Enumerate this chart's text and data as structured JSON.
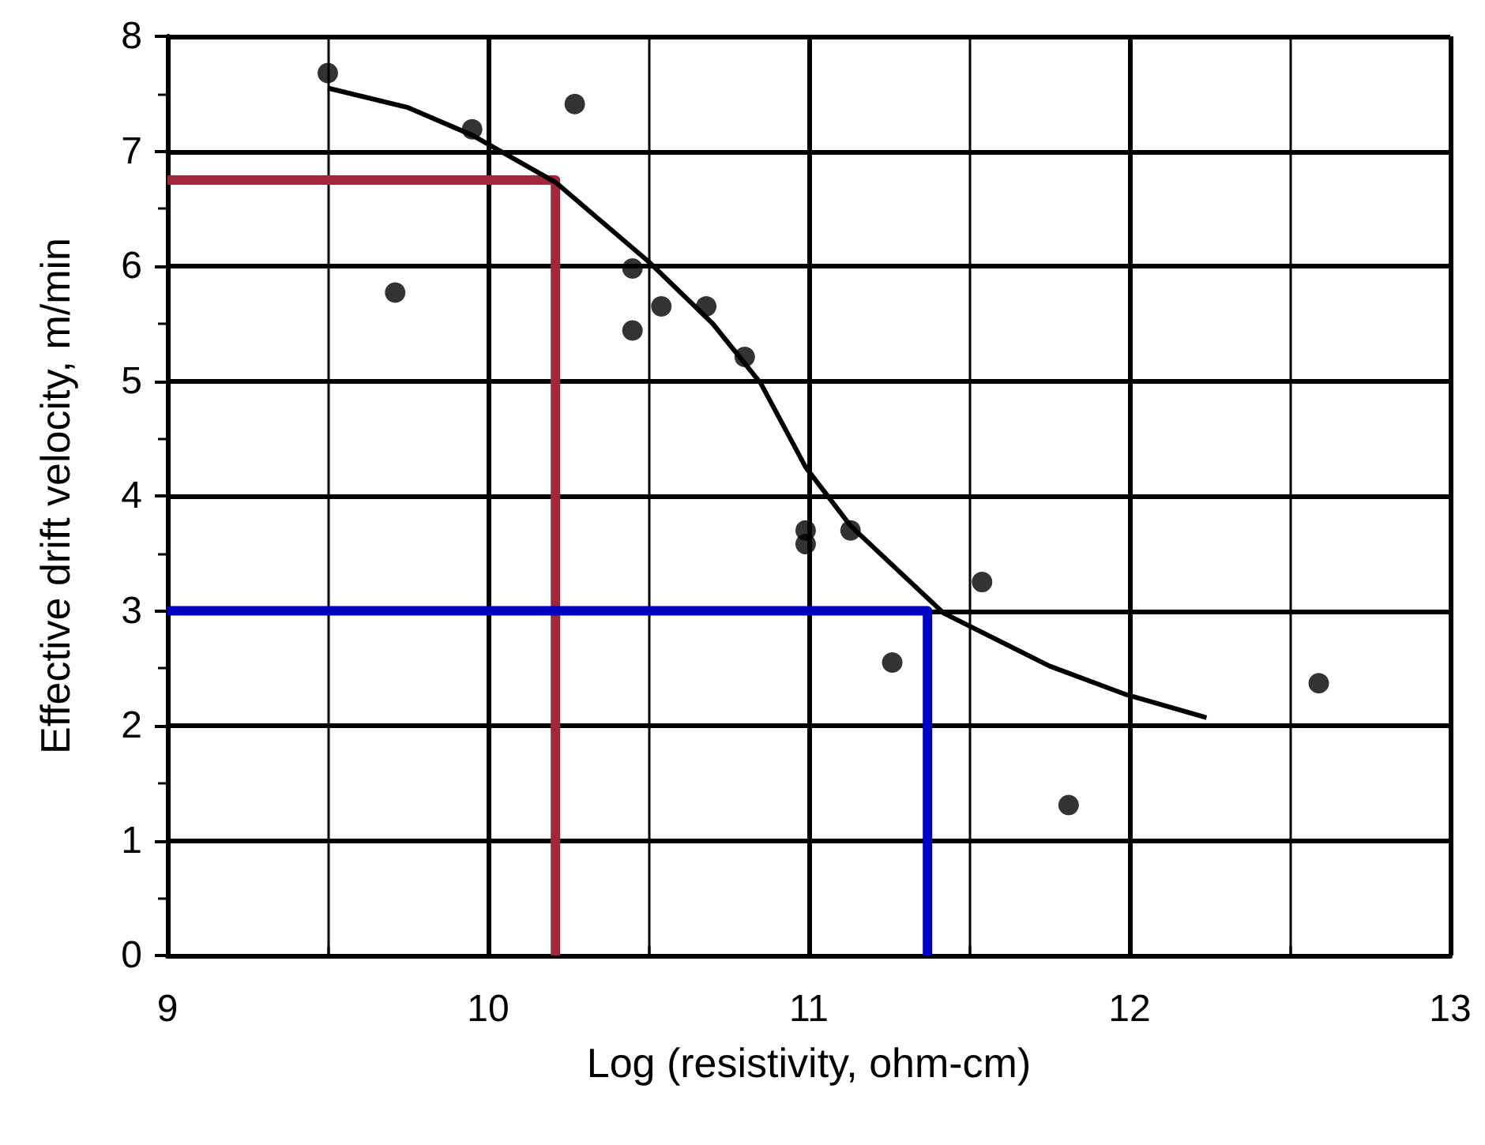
{
  "chart_data": {
    "type": "scatter",
    "xlabel": "Log (resistivity, ohm-cm)",
    "ylabel": "Effective drift velocity, m/min",
    "xlim": [
      9,
      13
    ],
    "xticks": [
      9,
      10,
      11,
      12,
      13
    ],
    "ylim": [
      0,
      8
    ],
    "yticks": [
      0,
      1,
      2,
      3,
      4,
      5,
      6,
      7,
      8
    ],
    "grid": true,
    "marker": "circle",
    "series": [
      {
        "color": "#000000",
        "x": [
          9.5,
          9.95,
          10.27,
          9.71,
          10.45,
          10.54,
          10.45,
          10.68,
          10.8,
          10.99,
          10.99,
          11.13,
          11.54,
          11.26,
          12.59,
          11.81
        ],
        "values": [
          7.68,
          7.19,
          7.41,
          5.77,
          5.98,
          5.65,
          5.44,
          5.65,
          5.21,
          3.58,
          3.7,
          3.7,
          3.25,
          2.55,
          2.37,
          1.31
        ]
      },
      {
        "type": "line",
        "color": "#000000",
        "marker": "none",
        "x": [
          9.5,
          9.75,
          9.95,
          10.21,
          10.5,
          10.7,
          10.85,
          10.99,
          11.13,
          11.42,
          11.75,
          11.99,
          12.24
        ],
        "values": [
          7.55,
          7.38,
          7.14,
          6.73,
          6.04,
          5.5,
          4.98,
          4.25,
          3.74,
          2.98,
          2.52,
          2.27,
          2.07
        ]
      },
      {
        "type": "line",
        "color": "#a0283a",
        "marker": "none",
        "x": [
          9,
          10.21,
          10.21
        ],
        "values": [
          6.75,
          6.75,
          0
        ]
      },
      {
        "type": "line",
        "color": "#0000c0",
        "marker": "none",
        "x": [
          9,
          11.37,
          11.37
        ],
        "values": [
          3,
          3,
          0
        ]
      }
    ]
  }
}
